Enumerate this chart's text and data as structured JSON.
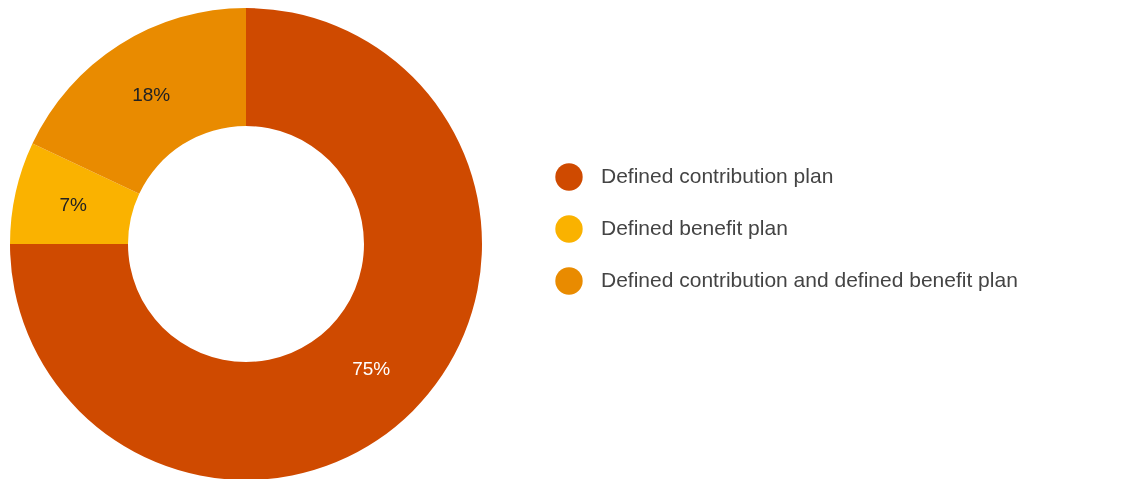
{
  "chart_data": {
    "type": "donut",
    "categories": [
      "Defined contribution plan",
      "Defined benefit plan",
      "Defined contribution and defined benefit plan"
    ],
    "values": [
      75,
      7,
      18
    ],
    "colors": [
      "#cf4a00",
      "#fab200",
      "#e98b00"
    ],
    "value_labels": [
      "75%",
      "7%",
      "18%"
    ],
    "legend": "right"
  }
}
